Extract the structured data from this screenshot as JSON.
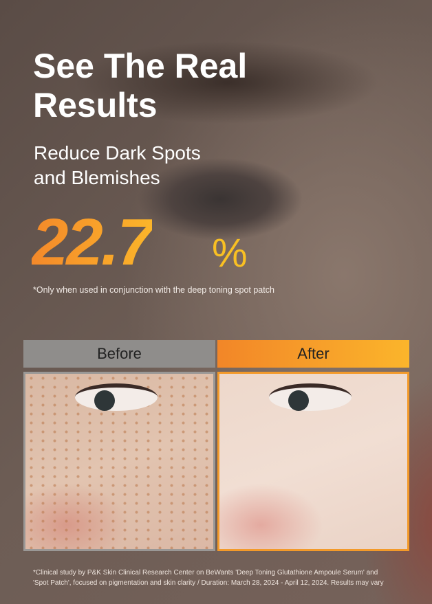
{
  "headline": {
    "line1": "See The Real",
    "line2": "Results"
  },
  "subheadline": {
    "line1": "Reduce Dark Spots",
    "line2": "and Blemishes"
  },
  "stat": {
    "value": "22.7",
    "unit": "%"
  },
  "stat_note": "*Only when used in conjunction with the deep toning spot patch",
  "comparison": {
    "before_label": "Before",
    "after_label": "After"
  },
  "footnote": {
    "line1": "*Clinical study by P&K Skin Clinical Research Center on BeWants 'Deep Toning Glutathione Ampoule Serum' and",
    "line2": "'Spot Patch', focused on pigmentation and skin clarity / Duration: March 28, 2024 - April 12, 2024. Results may vary"
  },
  "colors": {
    "accent_start": "#f28628",
    "accent_end": "#fbb52b",
    "before_bar": "#8f8d8b"
  }
}
